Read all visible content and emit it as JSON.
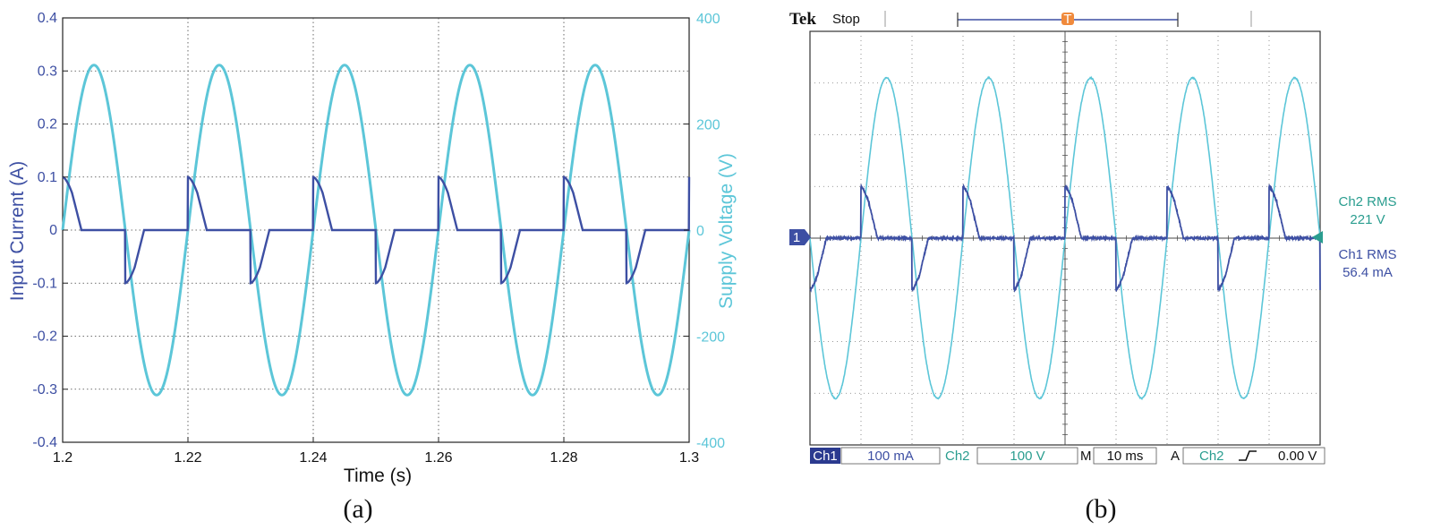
{
  "colors": {
    "current": "#3d4fa3",
    "voltage": "#5cc6d8",
    "scope_ch1": "#3d4fa3",
    "scope_ch2": "#5cc6d8",
    "scope_ch2_text": "#2a9d8f",
    "cursor": "#f08a3c"
  },
  "panel_a": {
    "caption": "(a)",
    "xlabel": "Time (s)",
    "ylabel_left": "Input Current (A)",
    "ylabel_right": "Supply Voltage (V)",
    "x_ticks": [
      "1.2",
      "1.22",
      "1.24",
      "1.26",
      "1.28",
      "1.3"
    ],
    "y_left_ticks": [
      "0.4",
      "0.3",
      "0.2",
      "0.1",
      "0",
      "-0.1",
      "-0.2",
      "-0.3",
      "-0.4"
    ],
    "y_right_ticks": [
      "400",
      "200",
      "0",
      "-200",
      "-400"
    ]
  },
  "panel_b": {
    "caption": "(b)",
    "brand": "Tek",
    "status": "Stop",
    "trigger_marker": "T",
    "ch1_marker": "1",
    "ch2_rms_label": "Ch2 RMS",
    "ch2_rms_value": "221 V",
    "ch1_rms_label": "Ch1 RMS",
    "ch1_rms_value": "56.4 mA",
    "bottom_bar": {
      "ch1_label": "Ch1",
      "ch1_scale": "100 mA",
      "ch2_label": "Ch2",
      "ch2_scale": "100 V",
      "m_label": "M",
      "timebase": "10 ms",
      "a_label": "A",
      "trigger_source": "Ch2",
      "trigger_level": "0.00 V"
    }
  },
  "chart_data": [
    {
      "type": "line",
      "panel": "a",
      "x_range": [
        1.2,
        1.3
      ],
      "ylim_left": [
        -0.4,
        0.4
      ],
      "ylim_right": [
        -400,
        400
      ],
      "grid": true,
      "series": [
        {
          "axis": "right",
          "kind": "sine",
          "frequency_hz": 50,
          "amplitude": 311,
          "phase_deg": 0,
          "samples": {
            "x": [
              1.2,
              1.205,
              1.21,
              1.215,
              1.22,
              1.225,
              1.23,
              1.235,
              1.24,
              1.245,
              1.25,
              1.255,
              1.26,
              1.265,
              1.27,
              1.275,
              1.28,
              1.285,
              1.29,
              1.295,
              1.3
            ],
            "y": [
              0,
              311,
              0,
              -311,
              0,
              311,
              0,
              -311,
              0,
              311,
              0,
              -311,
              0,
              311,
              0,
              -311,
              0,
              311,
              0,
              -311,
              0
            ]
          }
        },
        {
          "axis": "left",
          "kind": "piecewise",
          "period_s": 0.02,
          "peak": 0.1,
          "shape_points": {
            "t_in_half_period": [
              0,
              0.0015,
              0.003,
              0.0035,
              0.01
            ],
            "y": [
              0.1,
              0.07,
              0,
              0,
              0
            ]
          },
          "samples": {
            "x": [
              1.2,
              1.2015,
              1.203,
              1.21,
              1.2135,
              1.22,
              1.2235,
              1.23,
              1.2335,
              1.24,
              1.2435,
              1.25,
              1.2535,
              1.26,
              1.2635,
              1.27,
              1.2735,
              1.28,
              1.2835,
              1.29,
              1.2935,
              1.3
            ],
            "y": [
              0.1,
              0.07,
              0,
              -0.1,
              0,
              0.1,
              0,
              -0.1,
              0,
              0.1,
              0,
              -0.1,
              0,
              0.1,
              0,
              -0.1,
              0,
              0.1,
              0,
              -0.1,
              0,
              0.1
            ]
          }
        }
      ]
    },
    {
      "type": "line",
      "panel": "b",
      "grid": true,
      "grid_divisions": {
        "x": 10,
        "y": 8
      },
      "units_per_division": {
        "ch1": "100 mA",
        "ch2": "100 V",
        "time": "10 ms"
      },
      "series": [
        {
          "channel": "Ch2",
          "kind": "sine",
          "frequency_hz": 50,
          "amplitude_div": 3.1,
          "rms": "221 V"
        },
        {
          "channel": "Ch1",
          "kind": "piecewise",
          "peak_div": 1.0,
          "rms": "56.4 mA"
        }
      ]
    }
  ]
}
